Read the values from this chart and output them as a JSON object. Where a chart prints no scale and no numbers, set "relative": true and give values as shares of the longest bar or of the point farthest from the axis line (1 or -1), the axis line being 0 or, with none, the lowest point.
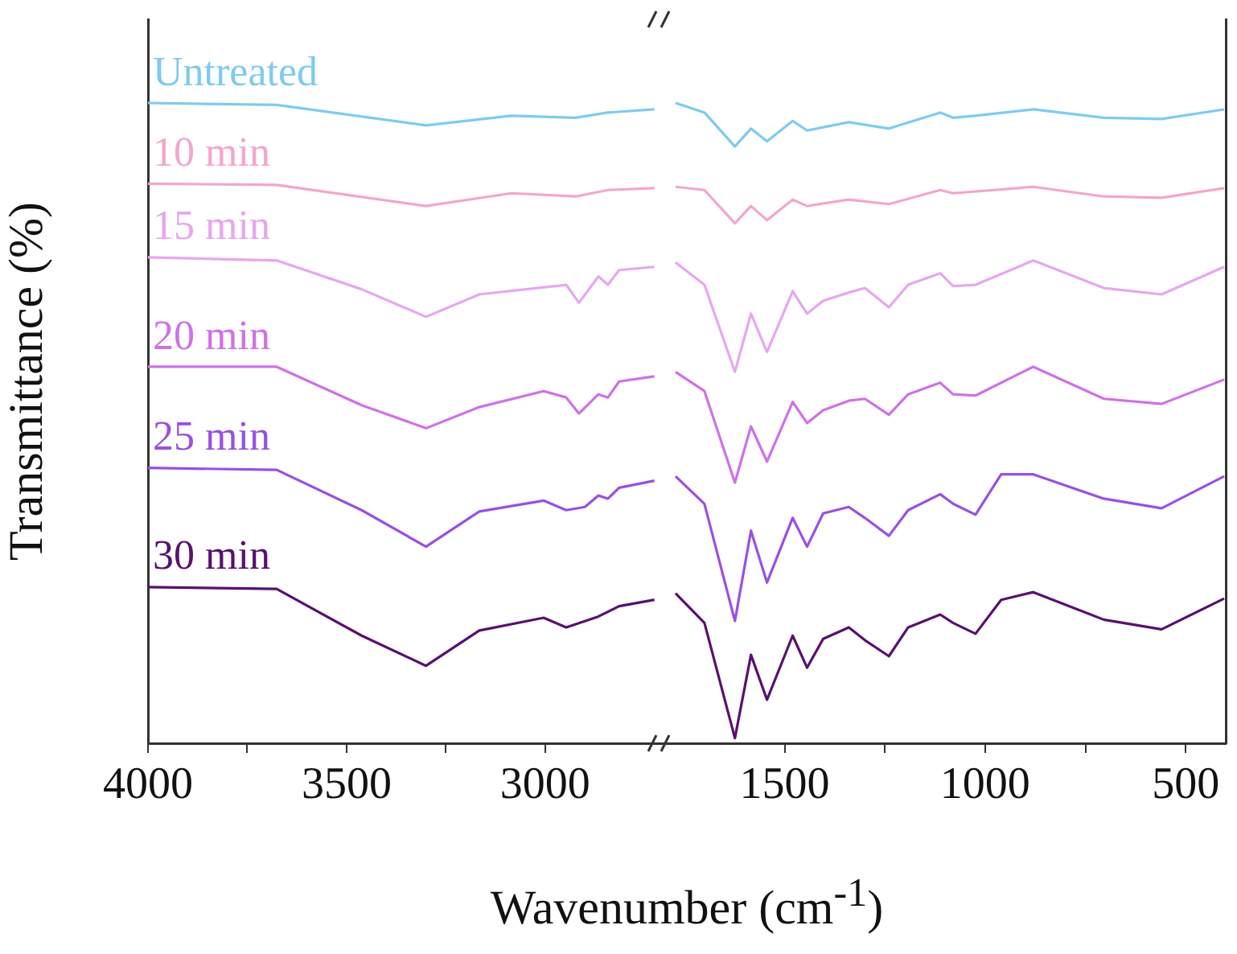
{
  "chart_data": [
    {
      "type": "line",
      "xlabel": "Wavenumber (cm$^{-1}$)",
      "ylabel": "Transmittance (%)",
      "relative": true,
      "xlim": [
        4000,
        2700
      ],
      "xticks": [
        4000,
        {
          "value": 3750,
          "label": null
        },
        3500,
        {
          "value": 3250,
          "label": null
        },
        3000
      ],
      "grid": false,
      "legend": false,
      "tick_labels": "x",
      "marker": "none",
      "line_style": "solid",
      "series": [
        {
          "name": "Untreated",
          "color": "#7ecbf0",
          "x": [
            4000,
            3676,
            3300,
            3085,
            2923,
            2842,
            2725
          ],
          "values": [
            1.0,
            0.997,
            0.965,
            0.98,
            0.977,
            0.985,
            0.99
          ]
        },
        {
          "name": "10 min",
          "color": "#f4a6cc",
          "x": [
            4000,
            3676,
            3300,
            3085,
            2923,
            2842,
            2725
          ],
          "values": [
            0.874,
            0.872,
            0.839,
            0.859,
            0.854,
            0.864,
            0.867
          ]
        },
        {
          "name": "15 min",
          "color": "#e8a6f0",
          "x": [
            4000,
            3676,
            3462,
            3300,
            3166,
            2947,
            2915,
            2866,
            2842,
            2814,
            2725
          ],
          "values": [
            0.759,
            0.754,
            0.709,
            0.666,
            0.701,
            0.716,
            0.688,
            0.729,
            0.716,
            0.739,
            0.744
          ]
        },
        {
          "name": "20 min",
          "color": "#d070e8",
          "x": [
            4000,
            3676,
            3462,
            3300,
            3166,
            3004,
            2947,
            2915,
            2866,
            2842,
            2814,
            2725
          ],
          "values": [
            0.588,
            0.588,
            0.528,
            0.492,
            0.525,
            0.55,
            0.54,
            0.515,
            0.545,
            0.54,
            0.565,
            0.573
          ]
        },
        {
          "name": "25 min",
          "color": "#9a50e0",
          "x": [
            4000,
            3676,
            3462,
            3300,
            3166,
            3004,
            2947,
            2900,
            2866,
            2842,
            2814,
            2725
          ],
          "values": [
            0.43,
            0.427,
            0.364,
            0.307,
            0.362,
            0.379,
            0.364,
            0.369,
            0.387,
            0.382,
            0.399,
            0.41
          ]
        },
        {
          "name": "30 min",
          "color": "#5a1070",
          "x": [
            4000,
            3676,
            3462,
            3300,
            3166,
            3004,
            2947,
            2866,
            2814,
            2725
          ],
          "values": [
            0.244,
            0.241,
            0.168,
            0.121,
            0.176,
            0.196,
            0.181,
            0.198,
            0.214,
            0.224
          ]
        }
      ]
    },
    {
      "type": "line",
      "relative": true,
      "xlim": [
        1800,
        400
      ],
      "xticks": [
        1500,
        {
          "value": 1250,
          "label": null
        },
        1000,
        {
          "value": 750,
          "label": null
        },
        500
      ],
      "grid": false,
      "legend": false,
      "tick_labels": "x",
      "marker": "none",
      "line_style": "solid",
      "series": [
        {
          "color": "#7ecbf0",
          "x": [
            1772,
            1700,
            1624,
            1584,
            1544,
            1480,
            1444,
            1340,
            1240,
            1112,
            1080,
            1024,
            880,
            704,
            560,
            404
          ],
          "values": [
            1.0,
            0.985,
            0.932,
            0.96,
            0.94,
            0.972,
            0.957,
            0.97,
            0.96,
            0.985,
            0.977,
            0.98,
            0.99,
            0.977,
            0.975,
            0.99
          ]
        },
        {
          "color": "#f4a6cc",
          "x": [
            1772,
            1700,
            1624,
            1584,
            1544,
            1480,
            1444,
            1340,
            1240,
            1112,
            1080,
            880,
            704,
            560,
            404
          ],
          "values": [
            0.869,
            0.864,
            0.812,
            0.839,
            0.817,
            0.849,
            0.839,
            0.849,
            0.842,
            0.864,
            0.859,
            0.869,
            0.854,
            0.852,
            0.867
          ]
        },
        {
          "color": "#e8a6f0",
          "x": [
            1772,
            1700,
            1624,
            1584,
            1544,
            1480,
            1444,
            1404,
            1340,
            1300,
            1240,
            1192,
            1112,
            1080,
            1024,
            880,
            704,
            560,
            404
          ],
          "values": [
            0.751,
            0.716,
            0.58,
            0.671,
            0.611,
            0.706,
            0.671,
            0.691,
            0.704,
            0.711,
            0.681,
            0.716,
            0.734,
            0.714,
            0.716,
            0.754,
            0.711,
            0.701,
            0.744
          ]
        },
        {
          "color": "#d070e8",
          "x": [
            1772,
            1700,
            1624,
            1584,
            1544,
            1480,
            1444,
            1404,
            1340,
            1300,
            1240,
            1192,
            1112,
            1080,
            1024,
            880,
            704,
            560,
            404
          ],
          "values": [
            0.58,
            0.55,
            0.407,
            0.495,
            0.44,
            0.533,
            0.5,
            0.52,
            0.535,
            0.538,
            0.513,
            0.545,
            0.563,
            0.545,
            0.543,
            0.588,
            0.538,
            0.53,
            0.568
          ]
        },
        {
          "color": "#9a50e0",
          "x": [
            1772,
            1700,
            1624,
            1584,
            1544,
            1480,
            1444,
            1404,
            1340,
            1300,
            1240,
            1192,
            1112,
            1080,
            1024,
            960,
            880,
            704,
            560,
            404
          ],
          "values": [
            0.417,
            0.374,
            0.191,
            0.332,
            0.251,
            0.352,
            0.307,
            0.359,
            0.369,
            0.352,
            0.324,
            0.364,
            0.389,
            0.374,
            0.357,
            0.42,
            0.42,
            0.382,
            0.367,
            0.417
          ]
        },
        {
          "color": "#5a1070",
          "x": [
            1772,
            1700,
            1624,
            1584,
            1544,
            1480,
            1444,
            1404,
            1340,
            1300,
            1240,
            1192,
            1112,
            1080,
            1024,
            960,
            880,
            704,
            560,
            404
          ],
          "values": [
            0.234,
            0.188,
            0.008,
            0.138,
            0.068,
            0.168,
            0.118,
            0.163,
            0.181,
            0.161,
            0.136,
            0.181,
            0.201,
            0.188,
            0.171,
            0.224,
            0.236,
            0.193,
            0.178,
            0.226
          ]
        }
      ]
    }
  ]
}
